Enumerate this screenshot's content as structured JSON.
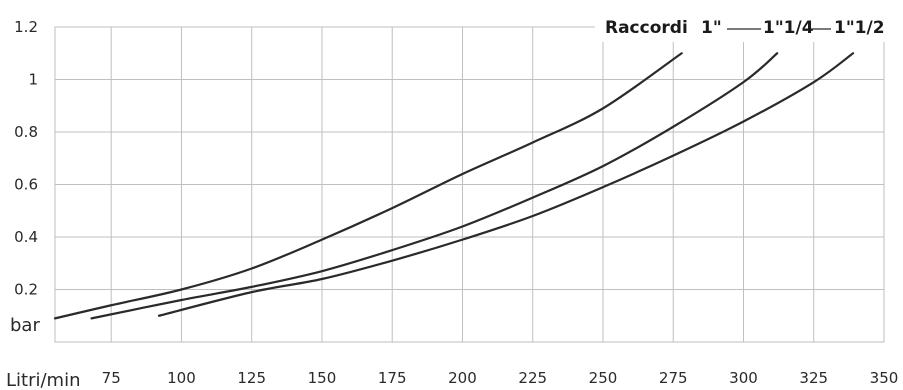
{
  "chart_data": {
    "type": "line",
    "title": "",
    "xlabel": "Litri/min",
    "ylabel": "bar",
    "xlim": [
      55,
      350
    ],
    "ylim": [
      0,
      1.2
    ],
    "grid": true,
    "legend_placement": "top-right",
    "x_ticks": [
      "75",
      "100",
      "125",
      "150",
      "175",
      "200",
      "225",
      "250",
      "275",
      "300",
      "325",
      "350"
    ],
    "y_ticks": [
      "0.2",
      "0.4",
      "0.6",
      "0.8",
      "1",
      "1.2"
    ],
    "legend_title": "Raccordi",
    "line_color": "#2a2a2a",
    "grid_color": "#bfbfbf",
    "series": [
      {
        "name": "1\"",
        "x": [
          55,
          75,
          100,
          125,
          150,
          175,
          200,
          225,
          250,
          278
        ],
        "y": [
          0.09,
          0.14,
          0.2,
          0.28,
          0.39,
          0.51,
          0.64,
          0.76,
          0.89,
          1.1
        ]
      },
      {
        "name": "1\"1/4",
        "x": [
          68,
          100,
          125,
          150,
          175,
          200,
          225,
          250,
          275,
          300,
          312
        ],
        "y": [
          0.09,
          0.16,
          0.21,
          0.27,
          0.35,
          0.44,
          0.55,
          0.67,
          0.82,
          0.99,
          1.1
        ]
      },
      {
        "name": "1\"1/2",
        "x": [
          92,
          125,
          150,
          175,
          200,
          225,
          250,
          275,
          300,
          325,
          339
        ],
        "y": [
          0.1,
          0.19,
          0.24,
          0.31,
          0.39,
          0.48,
          0.59,
          0.71,
          0.84,
          0.99,
          1.1
        ]
      }
    ]
  }
}
